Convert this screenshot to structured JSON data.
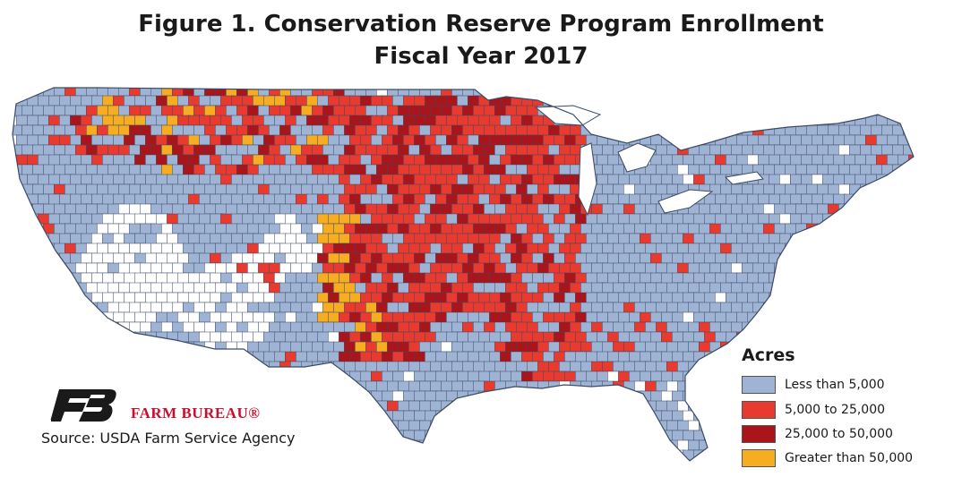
{
  "title": {
    "line1": "Figure 1. Conservation Reserve Program Enrollment",
    "line2": "Fiscal Year 2017"
  },
  "legend": {
    "title": "Acres",
    "items": [
      {
        "label": "Less than 5,000",
        "color": "#9fb4d4"
      },
      {
        "label": "5,000 to 25,000",
        "color": "#e83a2e"
      },
      {
        "label": "25,000 to 50,000",
        "color": "#a8151b"
      },
      {
        "label": "Greater than 50,000",
        "color": "#f7ad22"
      }
    ]
  },
  "brand": "FARM BUREAU®",
  "source": "Source: USDA Farm Service Agency",
  "colors": {
    "no_data": "#ffffff",
    "border": "#3a4a66",
    "logo": "#1a1a1a"
  }
}
